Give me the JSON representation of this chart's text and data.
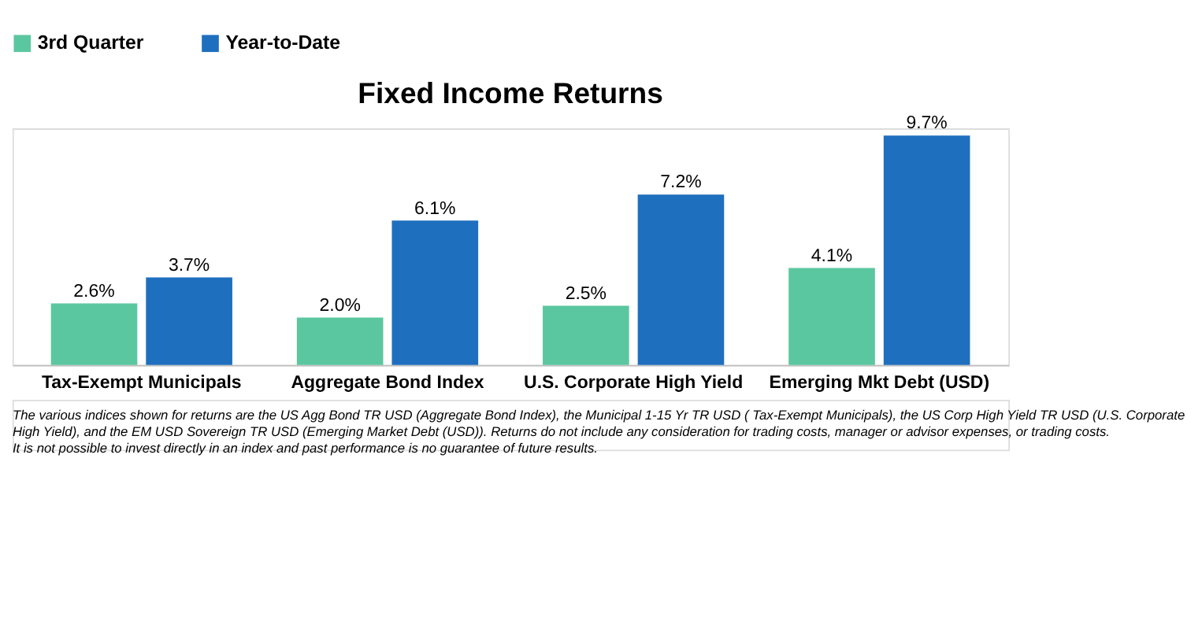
{
  "chart_data": {
    "type": "bar",
    "title": "Fixed Income Returns",
    "categories": [
      "Tax-Exempt Municipals",
      "Aggregate Bond Index",
      "U.S. Corporate High Yield",
      "Emerging Mkt Debt (USD)"
    ],
    "series": [
      {
        "name": "3rd Quarter",
        "color": "#5bc7a0",
        "values": [
          2.6,
          2.0,
          2.5,
          4.1
        ],
        "value_labels": [
          "2.6%",
          "2.0%",
          "2.5%",
          "4.1%"
        ]
      },
      {
        "name": "Year-to-Date",
        "color": "#1f6fbf",
        "values": [
          3.7,
          6.1,
          7.2,
          9.7
        ],
        "value_labels": [
          "3.7%",
          "6.1%",
          "7.2%",
          "9.7%"
        ]
      }
    ],
    "legend": "top",
    "grid": false,
    "tick_labels": "x",
    "annotations": [
      "The various indices shown for returns are the US Agg Bond TR USD (Aggregate Bond Index), the Municipal 1-15 Yr TR USD ( Tax-Exempt Municipals), the US Corp High Yield TR USD (U.S. Corporate",
      "High Yield), and the EM USD Sovereign TR USD (Emerging Market Debt (USD)).  Returns do not include any consideration for trading costs, manager or advisor expenses, or trading costs.",
      "It is not possible to invest directly in an index and past performance is no guarantee of future results."
    ]
  }
}
